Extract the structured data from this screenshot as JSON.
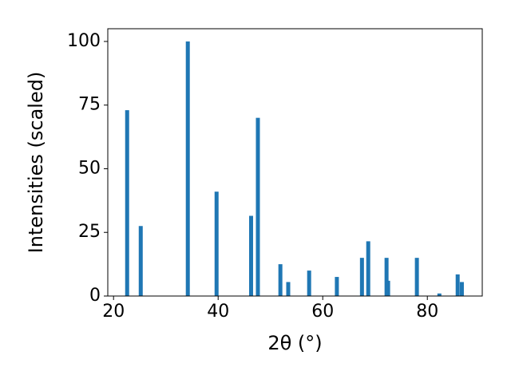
{
  "chart_data": {
    "type": "bar",
    "xlabel": "2θ (°)",
    "ylabel": "Intensities (scaled)",
    "x": [
      22.6,
      25.2,
      34.2,
      39.7,
      46.3,
      47.6,
      51.9,
      53.4,
      57.4,
      62.7,
      67.5,
      68.7,
      72.2,
      72.5,
      78.0,
      82.3,
      85.8,
      86.6
    ],
    "values": [
      73,
      27.5,
      100,
      41,
      31.5,
      70,
      12.5,
      5.5,
      10,
      7.5,
      15,
      21.5,
      15,
      6,
      15,
      1,
      8.5,
      5.5
    ],
    "color": "#1f77b4",
    "xlim": [
      18.9,
      90.5
    ],
    "xticks": [
      20,
      40,
      60,
      80
    ],
    "ylim": [
      0,
      105
    ],
    "yticks": [
      0,
      25,
      50,
      75,
      100
    ],
    "grid": false
  }
}
